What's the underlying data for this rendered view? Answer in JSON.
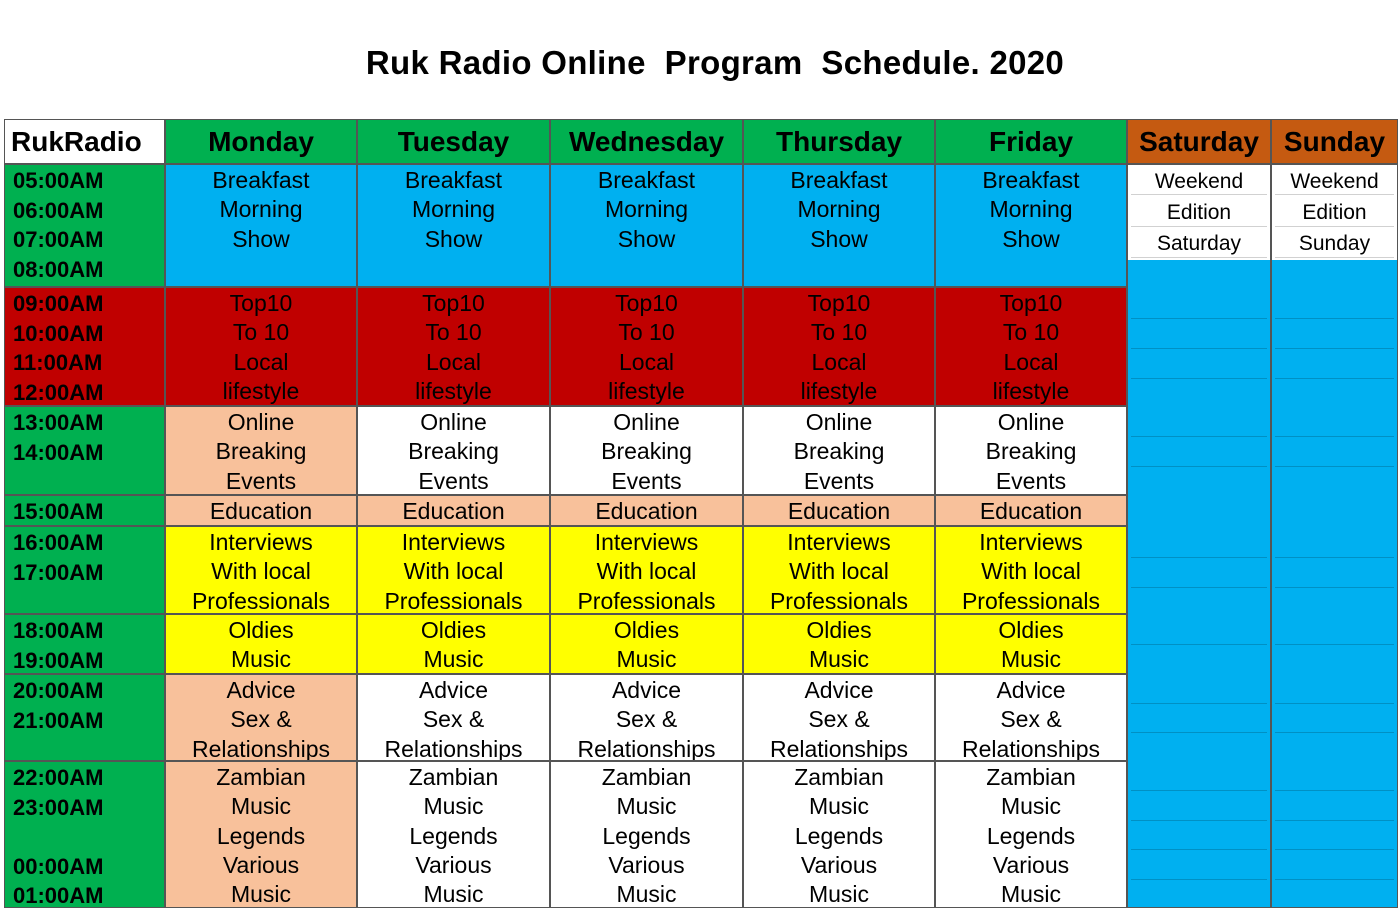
{
  "title": "Ruk Radio Online  Program  Schedule. 2020",
  "corner_label": "RukRadio",
  "days": [
    "Monday",
    "Tuesday",
    "Wednesday",
    "Thursday",
    "Friday",
    "Saturday",
    "Sunday"
  ],
  "colors": {
    "green": "#00b050",
    "blue": "#00b0f0",
    "red": "#c00000",
    "peach": "#f8c19b",
    "yellow": "#ffff00",
    "brown": "#c55a11",
    "white": "#ffffff"
  },
  "time_blocks": [
    {
      "times": [
        "05:00AM",
        "06:00AM",
        "07:00AM",
        "08:00AM"
      ]
    },
    {
      "times": [
        "09:00AM",
        "10:00AM",
        "11:00AM",
        "12:00AM"
      ]
    },
    {
      "times": [
        "13:00AM",
        "14:00AM"
      ]
    },
    {
      "times": [
        "15:00AM"
      ]
    },
    {
      "times": [
        "16:00AM",
        "17:00AM"
      ]
    },
    {
      "times": [
        "18:00AM",
        "19:00AM"
      ]
    },
    {
      "times": [
        "20:00AM",
        "21:00AM"
      ]
    },
    {
      "times": [
        "22:00AM",
        "23:00AM",
        "",
        "00:00AM",
        "01:00AM"
      ]
    }
  ],
  "weekday_programs": [
    {
      "lines": [
        "Breakfast",
        "Morning",
        "Show"
      ],
      "colors": [
        "blue",
        "blue",
        "blue",
        "blue",
        "blue"
      ]
    },
    {
      "lines": [
        "Top10",
        "To 10",
        "Local",
        "lifestyle"
      ],
      "colors": [
        "red",
        "red",
        "red",
        "red",
        "red"
      ]
    },
    {
      "lines": [
        "Online",
        "Breaking",
        "Events"
      ],
      "colors": [
        "peach",
        "white",
        "white",
        "white",
        "white"
      ]
    },
    {
      "lines": [
        "Education"
      ],
      "colors": [
        "peach",
        "peach",
        "peach",
        "peach",
        "peach"
      ]
    },
    {
      "lines": [
        "Interviews",
        "With local",
        "Professionals"
      ],
      "colors": [
        "yellow",
        "yellow",
        "yellow",
        "yellow",
        "yellow"
      ]
    },
    {
      "lines": [
        "Oldies",
        "Music"
      ],
      "colors": [
        "yellow",
        "yellow",
        "yellow",
        "yellow",
        "yellow"
      ]
    },
    {
      "lines": [
        "Advice",
        "Sex &",
        "Relationships"
      ],
      "colors": [
        "peach",
        "white",
        "white",
        "white",
        "white"
      ]
    },
    {
      "lines": [
        "Zambian",
        "Music",
        "Legends",
        "Various",
        "Music"
      ],
      "colors": [
        "peach",
        "white",
        "white",
        "white",
        "white"
      ]
    }
  ],
  "weekend": {
    "saturday": [
      "Weekend",
      "Edition",
      "Saturday"
    ],
    "sunday": [
      "Weekend",
      "Edition",
      "Sunday"
    ]
  }
}
